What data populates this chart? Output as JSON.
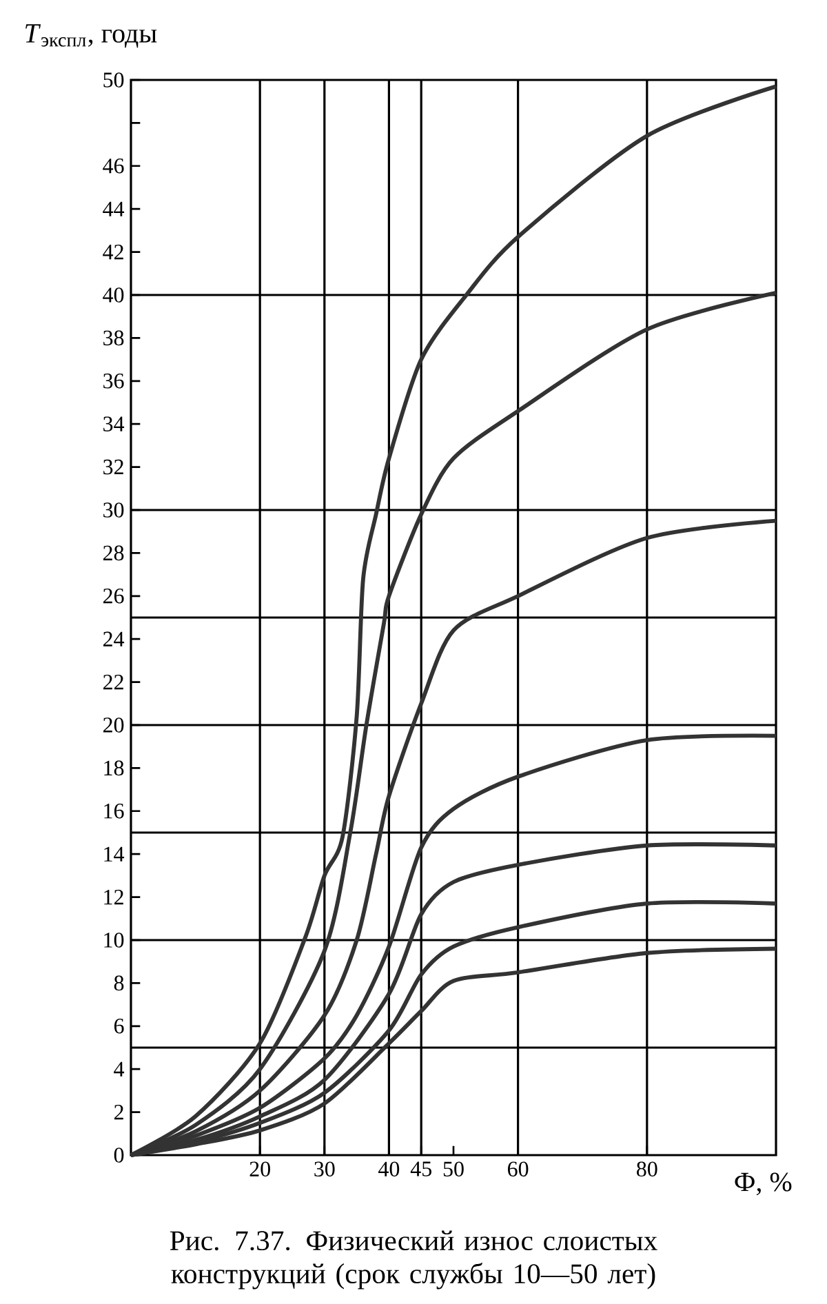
{
  "chart_data": {
    "type": "line",
    "xlabel": "Ф, %",
    "ylabel": "*T*$_{экспл}$, годы",
    "annotations": [
      "Рис. 7.37. Физический износ слоистых конструкций (срок службы 10—50 лет)"
    ],
    "xlim": [
      0,
      100
    ],
    "ylim": [
      0,
      50
    ],
    "xticks": [
      20,
      30,
      40,
      45,
      50,
      60,
      80
    ],
    "yticks": [
      0,
      2,
      4,
      6,
      8,
      10,
      12,
      14,
      16,
      18,
      20,
      22,
      24,
      26,
      28,
      30,
      32,
      34,
      36,
      38,
      40,
      42,
      44,
      46,
      {
        "value": 48,
        "label": null
      },
      50
    ],
    "ref_lines": [
      {
        "axis": "y",
        "value": 5
      },
      {
        "axis": "y",
        "value": 10
      },
      {
        "axis": "y",
        "value": 15
      },
      {
        "axis": "y",
        "value": 20
      },
      {
        "axis": "y",
        "value": 25
      },
      {
        "axis": "y",
        "value": 30
      },
      {
        "axis": "y",
        "value": 40
      },
      {
        "axis": "x",
        "value": 20
      },
      {
        "axis": "x",
        "value": 30
      },
      {
        "axis": "x",
        "value": 40
      },
      {
        "axis": "x",
        "value": 45
      },
      {
        "axis": "x",
        "value": 60
      },
      {
        "axis": "x",
        "value": 80
      }
    ],
    "series": [
      {
        "color": "#333333",
        "x": [
          0,
          10,
          20,
          27,
          30,
          32.8,
          35,
          36,
          38,
          40,
          45,
          52,
          60,
          80,
          100
        ],
        "values": [
          0,
          1.8,
          5.2,
          10.1,
          13,
          14.8,
          20.4,
          26.8,
          29.8,
          32.4,
          37,
          40,
          42.7,
          47.4,
          49.7
        ]
      },
      {
        "color": "#333333",
        "x": [
          0,
          10,
          20,
          30,
          34,
          36.5,
          39.2,
          40,
          45,
          50,
          60,
          80,
          100
        ],
        "values": [
          0,
          1.4,
          4,
          9.5,
          15,
          20,
          24.7,
          26,
          29.8,
          32.4,
          34.6,
          38.4,
          40.1
        ]
      },
      {
        "color": "#333333",
        "x": [
          0,
          10,
          20,
          30,
          35,
          38,
          40,
          45,
          50,
          60,
          80,
          100
        ],
        "values": [
          0,
          1.1,
          3,
          6.5,
          10,
          14,
          16.7,
          21,
          24.4,
          26,
          28.7,
          29.5
        ]
      },
      {
        "color": "#333333",
        "x": [
          0,
          10,
          20,
          30,
          35,
          40,
          45,
          50,
          60,
          80,
          100
        ],
        "values": [
          0,
          0.9,
          2.2,
          4.5,
          6.5,
          9.7,
          14.3,
          16.1,
          17.6,
          19.3,
          19.5
        ]
      },
      {
        "color": "#333333",
        "x": [
          0,
          10,
          20,
          30,
          40,
          45,
          50,
          60,
          80,
          100
        ],
        "values": [
          0,
          0.7,
          1.8,
          3.5,
          7.5,
          11.2,
          12.7,
          13.5,
          14.4,
          14.4
        ]
      },
      {
        "color": "#333333",
        "x": [
          0,
          10,
          20,
          30,
          40,
          45,
          50,
          60,
          80,
          100
        ],
        "values": [
          0,
          0.6,
          1.5,
          2.9,
          5.8,
          8.4,
          9.7,
          10.6,
          11.7,
          11.7
        ]
      },
      {
        "color": "#333333",
        "x": [
          0,
          10,
          20,
          30,
          40,
          45,
          50,
          60,
          80,
          100
        ],
        "values": [
          0,
          0.5,
          1.15,
          2.4,
          5.2,
          6.7,
          8.1,
          8.5,
          9.4,
          9.6
        ]
      }
    ]
  }
}
